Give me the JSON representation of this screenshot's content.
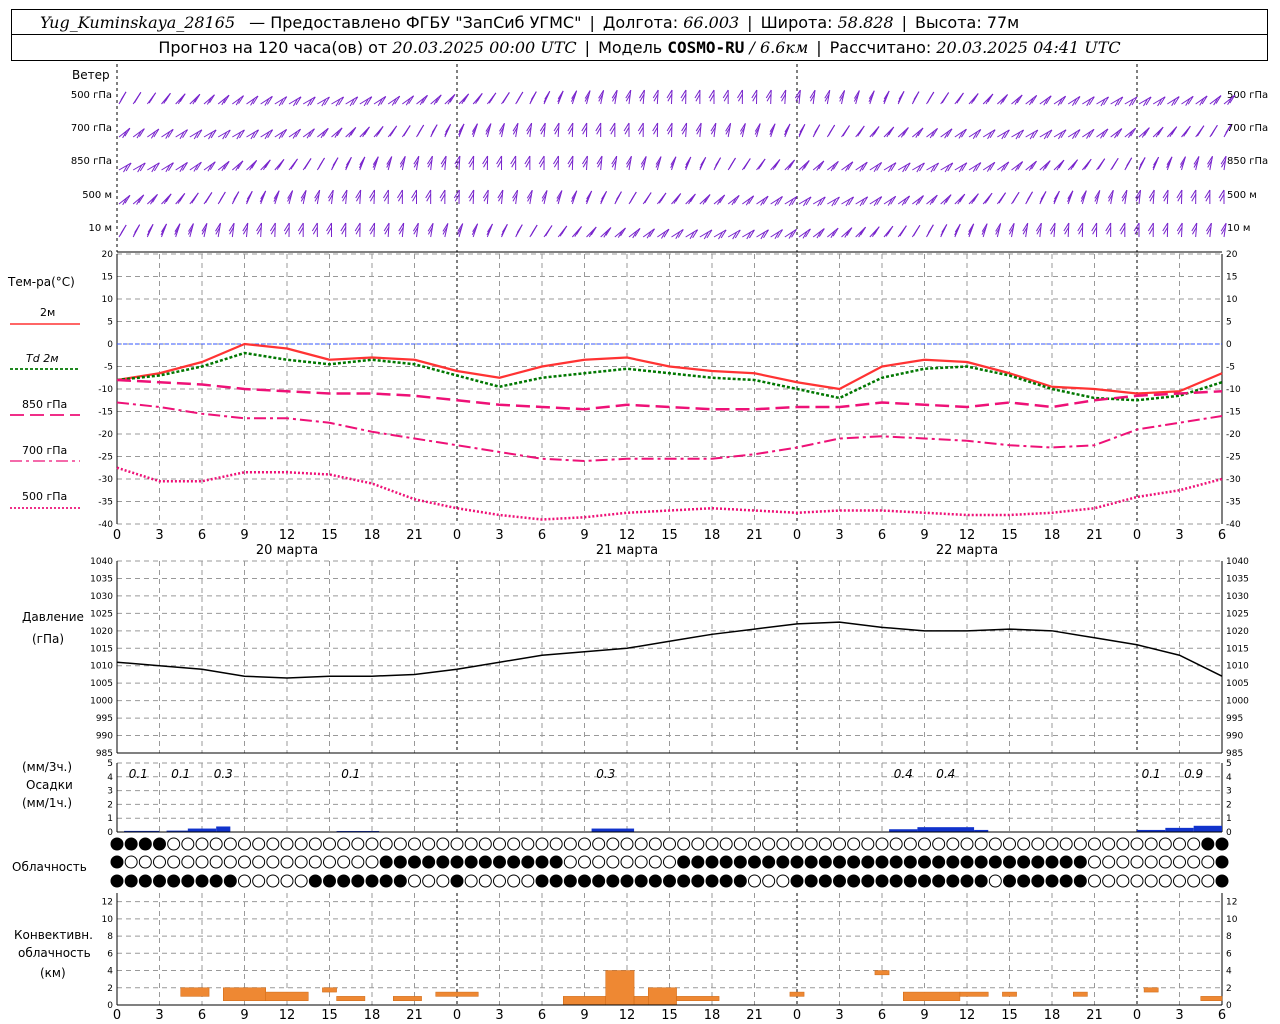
{
  "header": {
    "station": "Yug_Kuminskaya_28165",
    "provider": "— Предоставлено ФГБУ \"ЗапСиб УГМС\"",
    "lon_label": "Долгота:",
    "lon_value": "66.003",
    "lat_label": "Широта:",
    "lat_value": "58.828",
    "alt_label": "Высота:",
    "alt_value": "77м",
    "forecast_prefix": "Прогноз на 120 часа(ов) от",
    "forecast_time": "20.03.2025 00:00 UTC",
    "model_label": "Модель",
    "model_name": "COSMO-RU",
    "model_res": "/ 6.6км",
    "calc_label": "Рассчитано:",
    "calc_time": "20.03.2025 04:41 UTC"
  },
  "labels": {
    "wind": "Ветер",
    "wind_levels": [
      "500 гПа",
      "700 гПа",
      "850 гПа",
      "500 м",
      "10 м"
    ],
    "temp_title": "Тем-ра(°С)",
    "temp_2m": "2м",
    "td_2m": "Td 2м",
    "t850": "850 гПа",
    "t700": "700 гПа",
    "t500": "500 гПа",
    "pressure_title": "Давление",
    "pressure_unit": "(гПа)",
    "precip_unit_3h": "(мм/3ч.)",
    "precip_title": "Осадки",
    "precip_unit_1h": "(мм/1ч.)",
    "cloud_title": "Облачность",
    "conv_title1": "Конвективн.",
    "conv_title2": "облачность",
    "conv_unit": "(км)"
  },
  "colors": {
    "t2m": "#ff3333",
    "td2m": "#007700",
    "t850": "#ee1177",
    "t700": "#ee1177",
    "t500": "#ee1177",
    "wind": "#7722cc",
    "pressure": "#000000",
    "precip": "#1133cc",
    "convective": "#ee8833",
    "zero_line": "#3355ff"
  },
  "chart_data": [
    {
      "type": "line",
      "title": "Тем-ра(°С)",
      "x_hours": [
        0,
        3,
        6,
        9,
        12,
        15,
        18,
        21,
        24,
        27,
        30,
        33,
        36,
        39,
        42,
        45,
        48,
        51,
        54,
        57,
        60,
        63,
        66,
        69,
        72,
        75,
        78
      ],
      "ylim": [
        -40,
        20
      ],
      "series": [
        {
          "name": "2м",
          "values": [
            -8,
            -6.5,
            -4,
            0,
            -1,
            -3.5,
            -3,
            -3.5,
            -6,
            -7.5,
            -5,
            -3.5,
            -3,
            -5,
            -6,
            -6.5,
            -8.5,
            -10,
            -5,
            -3.5,
            -4,
            -6.5,
            -9.5,
            -10,
            -11,
            -10.5,
            -6.5
          ]
        },
        {
          "name": "Td 2м",
          "values": [
            -8,
            -7,
            -5,
            -2,
            -3.5,
            -4.5,
            -3.5,
            -4.5,
            -7,
            -9.5,
            -7.5,
            -6.5,
            -5.5,
            -6.5,
            -7.5,
            -8,
            -10,
            -12,
            -7.5,
            -5.5,
            -5,
            -7,
            -10,
            -12,
            -12.5,
            -11.5,
            -8.5
          ]
        },
        {
          "name": "850 гПа",
          "values": [
            -8,
            -8.5,
            -9,
            -10,
            -10.5,
            -11,
            -11,
            -11.5,
            -12.5,
            -13.5,
            -14,
            -14.5,
            -13.5,
            -14,
            -14.5,
            -14.5,
            -14,
            -14,
            -13,
            -13.5,
            -14,
            -13,
            -14,
            -12.5,
            -11.5,
            -11,
            -10.5
          ]
        },
        {
          "name": "700 гПа",
          "values": [
            -13,
            -14,
            -15.5,
            -16.5,
            -16.5,
            -17.5,
            -19.5,
            -21,
            -22.5,
            -24,
            -25.5,
            -26,
            -25.5,
            -25.5,
            -25.5,
            -24.5,
            -23,
            -21,
            -20.5,
            -21,
            -21.5,
            -22.5,
            -23,
            -22.5,
            -19,
            -17.5,
            -16
          ]
        },
        {
          "name": "500 гПа",
          "values": [
            -27.5,
            -30.5,
            -30.5,
            -28.5,
            -28.5,
            -29,
            -31,
            -34.5,
            -36.5,
            -38,
            -39,
            -38.5,
            -37.5,
            -37,
            -36.5,
            -37,
            -37.5,
            -37,
            -37,
            -37.5,
            -38,
            -38,
            -37.5,
            -36.5,
            -34,
            -32.5,
            -30
          ]
        }
      ],
      "x_ticks": [
        "0",
        "3",
        "6",
        "9",
        "12",
        "15",
        "18",
        "21",
        "0",
        "3",
        "6",
        "9",
        "12",
        "15",
        "18",
        "21",
        "0",
        "3",
        "6",
        "9",
        "12",
        "15",
        "18",
        "21",
        "0",
        "3",
        "6"
      ],
      "date_labels": [
        "20 марта",
        "21 марта",
        "22 марта"
      ],
      "y_ticks": [
        20,
        15,
        10,
        5,
        0,
        -5,
        -10,
        -15,
        -20,
        -25,
        -30,
        -35,
        -40
      ]
    },
    {
      "type": "line",
      "title": "Давление",
      "ylabel": "(гПа)",
      "x_hours": [
        0,
        3,
        6,
        9,
        12,
        15,
        18,
        21,
        24,
        27,
        30,
        33,
        36,
        39,
        42,
        45,
        48,
        51,
        54,
        57,
        60,
        63,
        66,
        69,
        72,
        75,
        78
      ],
      "ylim": [
        985,
        1040
      ],
      "series": [
        {
          "name": "Давление",
          "values": [
            1011,
            1010,
            1009,
            1007,
            1006.5,
            1007,
            1007,
            1007.5,
            1009,
            1011,
            1013,
            1014,
            1015,
            1017,
            1019,
            1020.5,
            1022,
            1022.5,
            1021,
            1020,
            1020,
            1020.5,
            1020,
            1018,
            1016,
            1013,
            1007
          ]
        }
      ],
      "y_ticks": [
        1040,
        1035,
        1030,
        1025,
        1020,
        1015,
        1010,
        1005,
        1000,
        995,
        990,
        985
      ]
    },
    {
      "type": "bar",
      "title": "Осадки",
      "ylabel": "(мм/1ч.)",
      "ylim": [
        0,
        5
      ],
      "bars": [
        {
          "start": 0.5,
          "end": 3,
          "value": 0.08
        },
        {
          "start": 3.5,
          "end": 6,
          "value": 0.1
        },
        {
          "start": 5,
          "end": 7,
          "value": 0.25
        },
        {
          "start": 7,
          "end": 8,
          "value": 0.4
        },
        {
          "start": 15.5,
          "end": 18.5,
          "value": 0.07
        },
        {
          "start": 33.5,
          "end": 36.5,
          "value": 0.25
        },
        {
          "start": 54.5,
          "end": 56.5,
          "value": 0.2
        },
        {
          "start": 56.5,
          "end": 60.5,
          "value": 0.35
        },
        {
          "start": 60.5,
          "end": 61.5,
          "value": 0.15
        },
        {
          "start": 72,
          "end": 74,
          "value": 0.15
        },
        {
          "start": 74,
          "end": 76,
          "value": 0.3
        },
        {
          "start": 76,
          "end": 78,
          "value": 0.45
        }
      ],
      "labels_3h": [
        {
          "x": 1.5,
          "text": "0.1"
        },
        {
          "x": 4.5,
          "text": "0.1"
        },
        {
          "x": 7.5,
          "text": "0.3"
        },
        {
          "x": 16.5,
          "text": "0.1"
        },
        {
          "x": 34.5,
          "text": "0.3"
        },
        {
          "x": 55.5,
          "text": "0.4"
        },
        {
          "x": 58.5,
          "text": "0.4"
        },
        {
          "x": 73,
          "text": "0.1"
        },
        {
          "x": 76,
          "text": "0.9"
        }
      ],
      "y_ticks": [
        5,
        4,
        3,
        2,
        1,
        0
      ]
    },
    {
      "type": "bar",
      "title": "Конвективн. облачность",
      "ylabel": "(км)",
      "ylim": [
        0,
        13
      ],
      "bars": [
        {
          "start": 4.5,
          "end": 6.5,
          "base": 1,
          "top": 2
        },
        {
          "start": 7.5,
          "end": 10.5,
          "base": 0.5,
          "top": 2
        },
        {
          "start": 10.5,
          "end": 13.5,
          "base": 0.5,
          "top": 1.5
        },
        {
          "start": 14.5,
          "end": 15.5,
          "base": 1.5,
          "top": 2
        },
        {
          "start": 15.5,
          "end": 17.5,
          "base": 0.5,
          "top": 1
        },
        {
          "start": 19.5,
          "end": 21.5,
          "base": 0.5,
          "top": 1
        },
        {
          "start": 22.5,
          "end": 25.5,
          "base": 1,
          "top": 1.5
        },
        {
          "start": 31.5,
          "end": 34.5,
          "base": 0,
          "top": 1
        },
        {
          "start": 34.5,
          "end": 36.5,
          "base": 0,
          "top": 4
        },
        {
          "start": 36.5,
          "end": 37.5,
          "base": 0,
          "top": 1
        },
        {
          "start": 37.5,
          "end": 39.5,
          "base": 0,
          "top": 2
        },
        {
          "start": 39.5,
          "end": 42.5,
          "base": 0.5,
          "top": 1
        },
        {
          "start": 47.5,
          "end": 48.5,
          "base": 1,
          "top": 1.5
        },
        {
          "start": 53.5,
          "end": 54.5,
          "base": 3.5,
          "top": 4
        },
        {
          "start": 55.5,
          "end": 59.5,
          "base": 0.5,
          "top": 1.5
        },
        {
          "start": 59.5,
          "end": 61.5,
          "base": 1,
          "top": 1.5
        },
        {
          "start": 62.5,
          "end": 63.5,
          "base": 1,
          "top": 1.5
        },
        {
          "start": 67.5,
          "end": 68.5,
          "base": 1,
          "top": 1.5
        },
        {
          "start": 72.5,
          "end": 73.5,
          "base": 1.5,
          "top": 2
        },
        {
          "start": 76.5,
          "end": 78,
          "base": 0.5,
          "top": 1
        }
      ],
      "y_ticks": [
        12,
        10,
        8,
        6,
        4,
        2,
        0
      ]
    }
  ]
}
